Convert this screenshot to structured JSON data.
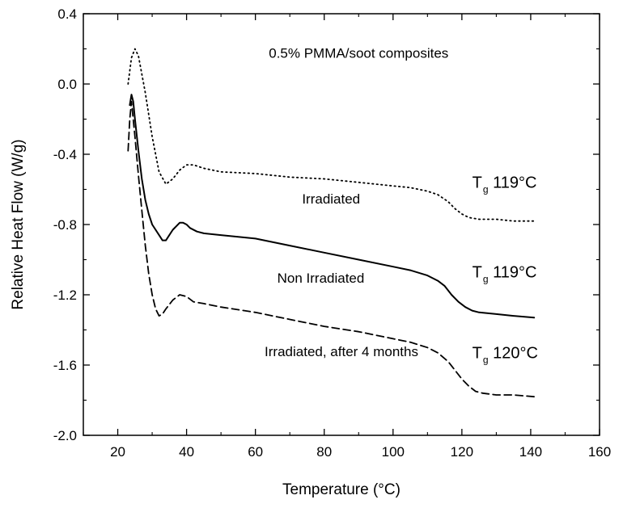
{
  "chart_data": {
    "type": "line",
    "title": "0.5% PMMA/soot composites",
    "xlabel": "Temperature (°C)",
    "ylabel": "Relative Heat Flow (W/g)",
    "xlim": [
      10,
      160
    ],
    "ylim": [
      -2.0,
      0.4
    ],
    "x_ticks": [
      20,
      40,
      60,
      80,
      100,
      120,
      140,
      160
    ],
    "y_ticks": [
      0.4,
      0.0,
      -0.4,
      -0.8,
      -1.2,
      -1.6,
      -2.0
    ],
    "x_tick_labels": [
      "20",
      "40",
      "60",
      "80",
      "100",
      "120",
      "140",
      "160"
    ],
    "y_tick_labels": [
      "0.4",
      "0.0",
      "-0.4",
      "-0.8",
      "-1.2",
      "-1.6",
      "-2.0"
    ],
    "grid": false,
    "series": [
      {
        "name": "Irradiated",
        "style": "dotted",
        "x": [
          23,
          24,
          25,
          26,
          28,
          30,
          32,
          34,
          36,
          38,
          40,
          42,
          45,
          50,
          60,
          70,
          80,
          90,
          100,
          105,
          110,
          113,
          116,
          118,
          120,
          122,
          125,
          130,
          135,
          141
        ],
        "y": [
          0.0,
          0.15,
          0.2,
          0.16,
          -0.05,
          -0.3,
          -0.5,
          -0.57,
          -0.54,
          -0.49,
          -0.46,
          -0.46,
          -0.48,
          -0.5,
          -0.51,
          -0.53,
          -0.54,
          -0.56,
          -0.58,
          -0.59,
          -0.61,
          -0.63,
          -0.67,
          -0.71,
          -0.74,
          -0.76,
          -0.77,
          -0.77,
          -0.78,
          -0.78
        ]
      },
      {
        "name": "Non Irradiated",
        "style": "solid",
        "x": [
          23.5,
          24,
          24.5,
          25,
          26,
          27,
          28,
          29,
          30,
          32,
          33,
          34,
          35,
          36,
          38,
          39,
          40,
          41,
          43,
          45,
          50,
          60,
          70,
          80,
          90,
          100,
          105,
          110,
          113,
          115,
          117,
          119,
          121,
          123,
          125,
          130,
          135,
          141
        ],
        "y": [
          -0.12,
          -0.06,
          -0.1,
          -0.2,
          -0.38,
          -0.54,
          -0.66,
          -0.74,
          -0.8,
          -0.86,
          -0.89,
          -0.89,
          -0.86,
          -0.83,
          -0.79,
          -0.79,
          -0.8,
          -0.82,
          -0.84,
          -0.85,
          -0.86,
          -0.88,
          -0.92,
          -0.96,
          -1.0,
          -1.04,
          -1.06,
          -1.09,
          -1.12,
          -1.15,
          -1.2,
          -1.24,
          -1.27,
          -1.29,
          -1.3,
          -1.31,
          -1.32,
          -1.33
        ]
      },
      {
        "name": "Irradiated, after 4 months",
        "style": "dashed",
        "x": [
          23,
          23.5,
          24,
          25,
          26,
          27,
          28,
          29,
          30,
          31,
          32,
          33,
          34,
          36,
          38,
          40,
          42,
          45,
          50,
          60,
          70,
          80,
          90,
          100,
          105,
          110,
          113,
          116,
          118,
          120,
          122,
          124,
          126,
          130,
          135,
          141
        ],
        "y": [
          -0.38,
          -0.2,
          -0.1,
          -0.3,
          -0.52,
          -0.72,
          -0.92,
          -1.08,
          -1.2,
          -1.28,
          -1.32,
          -1.31,
          -1.28,
          -1.23,
          -1.2,
          -1.21,
          -1.24,
          -1.25,
          -1.27,
          -1.3,
          -1.34,
          -1.38,
          -1.41,
          -1.45,
          -1.47,
          -1.5,
          -1.53,
          -1.58,
          -1.63,
          -1.68,
          -1.72,
          -1.75,
          -1.76,
          -1.77,
          -1.77,
          -1.78
        ]
      }
    ],
    "annotations": [
      {
        "text": "0.5% PMMA/soot composites",
        "x": 90,
        "y": 0.15
      },
      {
        "text": "Irradiated",
        "x": 82,
        "y": -0.68
      },
      {
        "text": "Non Irradiated",
        "x": 79,
        "y": -1.13
      },
      {
        "text": "Irradiated, after 4 months",
        "x": 85,
        "y": -1.55
      }
    ],
    "tg_labels": [
      {
        "main": "T",
        "sub": "g",
        "value": " 119°C",
        "x": 123,
        "y": -0.59
      },
      {
        "main": "T",
        "sub": "g",
        "value": " 119°C",
        "x": 123,
        "y": -1.1
      },
      {
        "main": "T",
        "sub": "g",
        "value": " 120°C",
        "x": 123,
        "y": -1.56
      }
    ]
  }
}
